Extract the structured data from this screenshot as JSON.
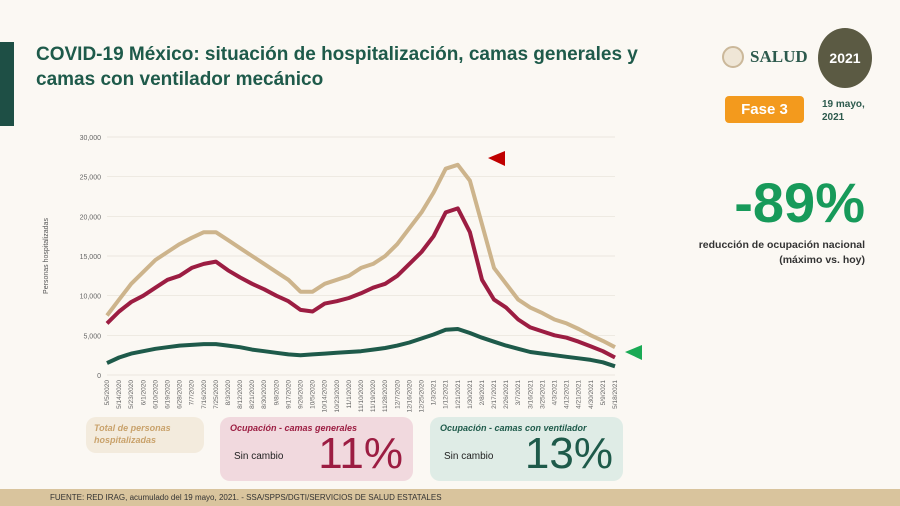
{
  "title": "COVID-19 México: situación de hospitalización, camas generales y camas con ventilador mecánico",
  "logo_salud": "SALUD",
  "logo_2021": "2021",
  "phase": "Fase 3",
  "date": "19 mayo, 2021",
  "headline": {
    "value": "-89%",
    "caption": "reducción de ocupación nacional (máximo vs. hoy)"
  },
  "cards": [
    {
      "title": "Total de personas hospitalizadas"
    },
    {
      "title": "Ocupación - camas generales",
      "status": "Sin cambio",
      "value": "11%"
    },
    {
      "title": "Ocupación - camas con ventilador",
      "status": "Sin cambio",
      "value": "13%"
    }
  ],
  "footer": "FUENTE: RED IRAG, acumulado del 19 mayo, 2021. - SSA/SPPS/DGTI/SERVICIOS DE SALUD ESTATALES",
  "colors": {
    "total": "#cdb48c",
    "general": "#9c1d42",
    "ventilator": "#1e5a4a"
  },
  "chart_data": {
    "type": "line",
    "ylabel": "Personas hospitalizadas",
    "ylim": [
      0,
      30000
    ],
    "yticks": [
      "0",
      "5,000",
      "10,000",
      "15,000",
      "20,000",
      "25,000",
      "30,000"
    ],
    "categories": [
      "5/5/2020",
      "5/14/2020",
      "5/23/2020",
      "6/1/2020",
      "6/10/2020",
      "6/19/2020",
      "6/28/2020",
      "7/7/2020",
      "7/16/2020",
      "7/25/2020",
      "8/3/2020",
      "8/12/2020",
      "8/21/2020",
      "8/30/2020",
      "9/8/2020",
      "9/17/2020",
      "9/26/2020",
      "10/5/2020",
      "10/14/2020",
      "10/23/2020",
      "11/1/2020",
      "11/10/2020",
      "11/19/2020",
      "11/28/2020",
      "12/7/2020",
      "12/16/2020",
      "12/25/2020",
      "1/3/2021",
      "1/12/2021",
      "1/21/2021",
      "1/30/2021",
      "2/8/2021",
      "2/17/2021",
      "2/26/2021",
      "3/7/2021",
      "3/16/2021",
      "3/25/2021",
      "4/3/2021",
      "4/12/2021",
      "4/21/2021",
      "4/30/2021",
      "5/9/2021",
      "5/18/2021"
    ],
    "series": [
      {
        "name": "Total de personas hospitalizadas",
        "values": [
          7500,
          9500,
          11500,
          13000,
          14500,
          15500,
          16500,
          17300,
          18000,
          18000,
          17000,
          16000,
          15000,
          14000,
          13000,
          12000,
          10500,
          10500,
          11500,
          12000,
          12500,
          13500,
          14000,
          15000,
          16500,
          18500,
          20500,
          23000,
          26000,
          26500,
          24500,
          19000,
          13500,
          11500,
          9500,
          8500,
          7800,
          7000,
          6500,
          5800,
          5000,
          4300,
          3500
        ]
      },
      {
        "name": "Ocupación - camas generales",
        "values": [
          6500,
          8000,
          9200,
          10000,
          11000,
          12000,
          12500,
          13500,
          14000,
          14300,
          13200,
          12300,
          11500,
          10800,
          10000,
          9300,
          8200,
          8000,
          9000,
          9300,
          9700,
          10300,
          11000,
          11500,
          12500,
          14000,
          15500,
          17500,
          20500,
          21000,
          18000,
          12000,
          9500,
          8500,
          7000,
          6000,
          5500,
          5000,
          4700,
          4200,
          3600,
          3000,
          2200
        ]
      },
      {
        "name": "Ocupación - camas con ventilador",
        "values": [
          1500,
          2200,
          2700,
          3000,
          3300,
          3500,
          3700,
          3800,
          3900,
          3900,
          3700,
          3500,
          3200,
          3000,
          2800,
          2600,
          2500,
          2600,
          2700,
          2800,
          2900,
          3000,
          3200,
          3400,
          3700,
          4100,
          4600,
          5100,
          5700,
          5800,
          5300,
          4700,
          4200,
          3700,
          3300,
          2900,
          2700,
          2500,
          2300,
          2100,
          1900,
          1600,
          1100
        ]
      }
    ]
  }
}
